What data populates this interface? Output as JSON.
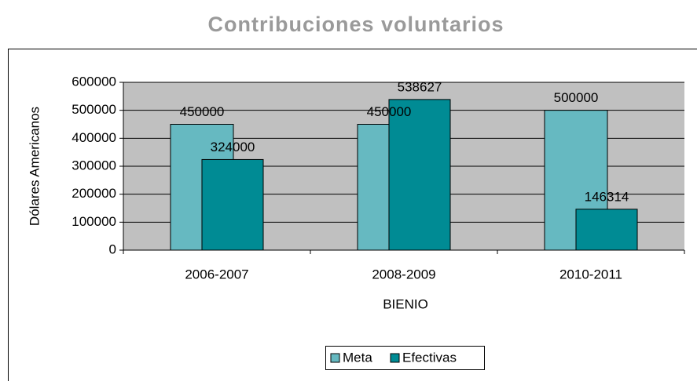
{
  "chart_data": {
    "type": "bar",
    "title": "Contribuciones voluntarios",
    "x_label": "BIENIO",
    "y_label": "Dólares Americanos",
    "categories": [
      "2006-2007",
      "2008-2009",
      "2010-2011"
    ],
    "series": [
      {
        "name": "Meta",
        "color": "#66b9c1",
        "values": [
          450000,
          450000,
          500000
        ]
      },
      {
        "name": "Efectivas",
        "color": "#008b94",
        "values": [
          324000,
          538627,
          146314
        ]
      }
    ],
    "ylim": [
      0,
      600000
    ],
    "yticks": [
      0,
      100000,
      200000,
      300000,
      400000,
      500000,
      600000
    ],
    "grid": true,
    "legend": "bottom"
  }
}
